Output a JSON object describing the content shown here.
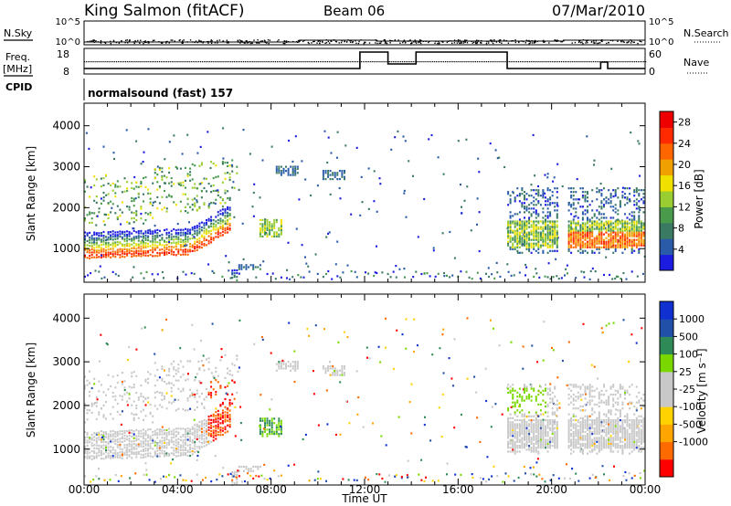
{
  "header": {
    "station": "King Salmon (fitACF)",
    "beam": "Beam 06",
    "date": "07/Mar/2010"
  },
  "noise_panel": {
    "left_label": "N.Sky",
    "right_label": "N.Search",
    "left_ticks": [
      "10^5",
      "10^0"
    ],
    "right_ticks": [
      "10^5",
      "10^0"
    ]
  },
  "freq_panel": {
    "left_label_1": "Freq.",
    "left_label_2": "[MHz]",
    "right_label": "Nave",
    "left_ticks": [
      "18",
      "8"
    ],
    "right_ticks": [
      "60",
      "0"
    ]
  },
  "cpid": {
    "label": "CPID",
    "program": "normalsound (fast) 157"
  },
  "colors": {
    "power": [
      "#1c1ce0",
      "#2a5ba8",
      "#3a7a62",
      "#4a9a4c",
      "#9acd32",
      "#f0e000",
      "#f0a000",
      "#ff6600",
      "#ff2a00",
      "#ee0000"
    ],
    "velocity": [
      "#ff0000",
      "#ff6a00",
      "#ffa500",
      "#ffd200",
      "#c8c8c8",
      "#c8c8c8",
      "#7ad800",
      "#2e8b57",
      "#2050a8",
      "#1030d0"
    ]
  },
  "chart_data": [
    {
      "type": "heatmap",
      "name": "power",
      "ylabel": "Slant Range [km]",
      "xlabel": "Time UT",
      "xlim": [
        0,
        24
      ],
      "ylim": [
        180,
        4550
      ],
      "x_ticks": [
        "00:00",
        "04:00",
        "08:00",
        "12:00",
        "16:00",
        "20:00",
        "00:00"
      ],
      "y_ticks": [
        1000,
        2000,
        3000,
        4000
      ],
      "colorbar_label": "Power [dB]",
      "colorbar_ticks": [
        4,
        8,
        12,
        16,
        20,
        24,
        28
      ],
      "colorbar_range": [
        0,
        30
      ]
    },
    {
      "type": "heatmap",
      "name": "velocity",
      "ylabel": "Slant Range [km]",
      "xlabel": "Time UT",
      "xlim": [
        0,
        24
      ],
      "ylim": [
        180,
        4550
      ],
      "x_ticks": [
        "00:00",
        "04:00",
        "08:00",
        "12:00",
        "16:00",
        "20:00",
        "00:00"
      ],
      "y_ticks": [
        1000,
        2000,
        3000,
        4000
      ],
      "colorbar_label": "Velocity [m s⁻¹]",
      "colorbar_ticks": [
        "1000",
        "500",
        "100",
        "25",
        "-25",
        "-100",
        "-500",
        "-1000"
      ]
    }
  ]
}
